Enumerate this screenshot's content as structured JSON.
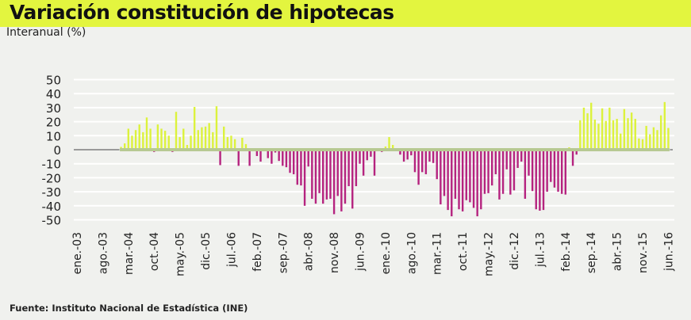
{
  "title": "Variación constitución de hipotecas",
  "subtitle": "Interanual (%)",
  "source": "Fuente: Instituto Nacional de Estadística (INE)",
  "colors": {
    "positive": "#dcf23c",
    "negative": "#b5237f",
    "baseline_band": "#b7c992",
    "baseline_gray": "#9a9a9a",
    "title_bar": "#e3f53f",
    "grid": "#ffffff"
  },
  "chart_data": {
    "type": "bar",
    "ylim": [
      -50,
      50
    ],
    "yticks": [
      50,
      40,
      30,
      20,
      10,
      0,
      -10,
      -20,
      -30,
      -40,
      -50
    ],
    "grid": true,
    "xtick_labels": [
      "ene.-03",
      "ago.-03",
      "mar.-04",
      "oct.-04",
      "may.-05",
      "dic.-05",
      "jul.-06",
      "feb.-07",
      "sep.-07",
      "abr.-08",
      "nov.-08",
      "jun.-09",
      "ene.-10",
      "ago.-10",
      "mar.-11",
      "oct.-11",
      "may.-12",
      "dic.-12",
      "jul.-13",
      "feb.-14",
      "sep.-14",
      "abr.-15",
      "nov.-15",
      "jun.-16"
    ],
    "categories": [
      "ene-03",
      "feb-03",
      "mar-03",
      "abr-03",
      "may-03",
      "jun-03",
      "jul-03",
      "ago-03",
      "sep-03",
      "oct-03",
      "nov-03",
      "dic-03",
      "ene-04",
      "feb-04",
      "mar-04",
      "abr-04",
      "may-04",
      "jun-04",
      "jul-04",
      "ago-04",
      "sep-04",
      "oct-04",
      "nov-04",
      "dic-04",
      "ene-05",
      "feb-05",
      "mar-05",
      "abr-05",
      "may-05",
      "jun-05",
      "jul-05",
      "ago-05",
      "sep-05",
      "oct-05",
      "nov-05",
      "dic-05",
      "ene-06",
      "feb-06",
      "mar-06",
      "abr-06",
      "may-06",
      "jun-06",
      "jul-06",
      "ago-06",
      "sep-06",
      "oct-06",
      "nov-06",
      "dic-06",
      "ene-07",
      "feb-07",
      "mar-07",
      "abr-07",
      "may-07",
      "jun-07",
      "jul-07",
      "ago-07",
      "sep-07",
      "oct-07",
      "nov-07",
      "dic-07",
      "ene-08",
      "feb-08",
      "mar-08",
      "abr-08",
      "may-08",
      "jun-08",
      "jul-08",
      "ago-08",
      "sep-08",
      "oct-08",
      "nov-08",
      "dic-08",
      "ene-09",
      "feb-09",
      "mar-09",
      "abr-09",
      "may-09",
      "jun-09",
      "jul-09",
      "ago-09",
      "sep-09",
      "oct-09",
      "nov-09",
      "dic-09",
      "ene-10",
      "feb-10",
      "mar-10",
      "abr-10",
      "may-10",
      "jun-10",
      "jul-10",
      "ago-10",
      "sep-10",
      "oct-10",
      "nov-10",
      "dic-10",
      "ene-11",
      "feb-11",
      "mar-11",
      "abr-11",
      "may-11",
      "jun-11",
      "jul-11",
      "ago-11",
      "sep-11",
      "oct-11",
      "nov-11",
      "dic-11",
      "ene-12",
      "feb-12",
      "mar-12",
      "abr-12",
      "may-12",
      "jun-12",
      "jul-12",
      "ago-12",
      "sep-12",
      "oct-12",
      "nov-12",
      "dic-12",
      "ene-13",
      "feb-13",
      "mar-13",
      "abr-13",
      "may-13",
      "jun-13",
      "jul-13",
      "ago-13",
      "sep-13",
      "oct-13",
      "nov-13",
      "dic-13",
      "ene-14",
      "feb-14",
      "mar-14",
      "abr-14",
      "may-14",
      "jun-14",
      "jul-14",
      "ago-14",
      "sep-14",
      "oct-14",
      "nov-14",
      "dic-14",
      "ene-15",
      "feb-15",
      "mar-15",
      "abr-15",
      "may-15",
      "jun-15",
      "jul-15",
      "ago-15",
      "sep-15",
      "oct-15",
      "nov-15",
      "dic-15",
      "ene-16",
      "feb-16",
      "mar-16",
      "abr-16",
      "may-16",
      "jun-16"
    ],
    "values": [
      null,
      null,
      null,
      null,
      null,
      null,
      null,
      null,
      null,
      null,
      null,
      null,
      2,
      4.5,
      15,
      10,
      14,
      18,
      12.5,
      23,
      15,
      -1,
      18,
      15,
      13.5,
      10,
      -1.5,
      27,
      9,
      15,
      3.4,
      10,
      30.5,
      14,
      16,
      16.5,
      19,
      12.5,
      31,
      -11,
      16.5,
      9,
      10,
      7.5,
      -11.5,
      8.5,
      4,
      -11.5,
      0,
      -4.5,
      -8.5,
      0,
      -6,
      -10,
      -2,
      -8,
      -11.5,
      -12.5,
      -16.5,
      -17.5,
      -25,
      -25.5,
      -40,
      -12,
      -35,
      -38.5,
      -31,
      -38.5,
      -35.5,
      -35,
      -46,
      -33,
      -44,
      -38.5,
      -26,
      -42,
      -26,
      -10,
      -18.5,
      -7.5,
      -5,
      -18.5,
      0,
      -1.5,
      2.3,
      9,
      3.4,
      0,
      -3.5,
      -8.5,
      -7,
      -4,
      -16,
      -25,
      -16,
      -17.5,
      -8.5,
      -9.5,
      -21,
      -39,
      -33,
      -43,
      -47.5,
      -35,
      -42.5,
      -44,
      -36,
      -37.5,
      -41.5,
      -47.5,
      -42.5,
      -31.5,
      -31,
      -25.5,
      -17.5,
      -35.5,
      -31.5,
      -14,
      -32,
      -29,
      -13,
      -8.5,
      -35,
      -18.5,
      -29.5,
      -42.5,
      -43.5,
      -43,
      -30,
      -23,
      -27,
      -30,
      -31.5,
      -32,
      1.7,
      -11.5,
      -3.5,
      21,
      30,
      26,
      33.5,
      21.5,
      18.5,
      29.5,
      20.5,
      30,
      21,
      22,
      11.5,
      29,
      22.5,
      26.5,
      22,
      8,
      7.5,
      17,
      11,
      16,
      14,
      24.5,
      34,
      15.5
    ]
  }
}
